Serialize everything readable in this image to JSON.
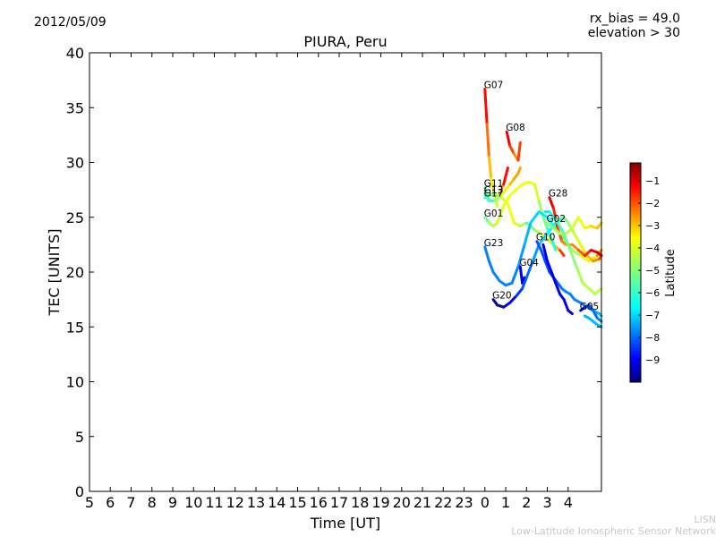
{
  "header": {
    "date": "2012/05/09",
    "rx_bias": "rx_bias = 49.0",
    "elevation": "elevation > 30"
  },
  "credit": {
    "line1": "LISN",
    "line2": "Low-Latitude Ionospheric Sensor Network"
  },
  "colors": {
    "colormap": [
      "#00007f",
      "#0000ff",
      "#007fff",
      "#00ffff",
      "#7fff7f",
      "#ffff00",
      "#ff7f00",
      "#ff0000",
      "#7f0000"
    ],
    "colormap_name": "jet"
  },
  "chart_data": {
    "type": "line",
    "title": "PIURA, Peru",
    "xlabel": "Time [UT]",
    "ylabel": "TEC [UNITS]",
    "ylim": [
      0,
      40
    ],
    "y_ticks": [
      0,
      5,
      10,
      15,
      20,
      25,
      30,
      35,
      40
    ],
    "x_tick_labels": [
      "5",
      "6",
      "7",
      "8",
      "9",
      "10",
      "11",
      "12",
      "13",
      "14",
      "15",
      "16",
      "17",
      "18",
      "19",
      "20",
      "21",
      "22",
      "23",
      "0",
      "1",
      "2",
      "3",
      "4"
    ],
    "x_range_hours_after_5ut": [
      0,
      24.6
    ],
    "colorbar": {
      "label": "Latitude",
      "range": [
        -10,
        -0.2
      ],
      "ticks": [
        -1,
        -2,
        -3,
        -4,
        -5,
        -6,
        -7,
        -8,
        -9
      ]
    },
    "series": [
      {
        "name": "G07",
        "x": [
          19.0,
          19.1,
          19.2,
          19.3,
          19.45,
          19.6
        ],
        "y": [
          36.7,
          33.5,
          30.5,
          28.5,
          27.0,
          26.0
        ],
        "lat": [
          -1,
          -2,
          -3,
          -3.5,
          -4,
          -4.5
        ]
      },
      {
        "name": "G08",
        "x": [
          20.05,
          20.2,
          20.4,
          20.6,
          20.7
        ],
        "y": [
          32.8,
          31.5,
          30.8,
          30.2,
          31.8
        ],
        "lat": [
          -1,
          -1.5,
          -2.5,
          -3,
          -1
        ]
      },
      {
        "name": "G11",
        "x": [
          19.0,
          19.2,
          19.5,
          19.8,
          20.0,
          20.2,
          20.4,
          20.6,
          20.7
        ],
        "y": [
          27.7,
          26.5,
          26.5,
          27.0,
          27.5,
          28.0,
          28.5,
          29.0,
          29.5
        ],
        "lat": [
          -5,
          -5.5,
          -5,
          -4.5,
          -4,
          -3.5,
          -3,
          -3,
          -3
        ]
      },
      {
        "name": "G13",
        "x": [
          19.0,
          19.2,
          19.5,
          19.7,
          19.9,
          20.1
        ],
        "y": [
          27.1,
          26.5,
          26.5,
          27.0,
          28.0,
          29.5
        ],
        "lat": [
          -5.5,
          -6,
          -5.5,
          -4,
          -2,
          -1
        ]
      },
      {
        "name": "G17",
        "x": [
          19.0,
          19.2,
          19.5,
          19.8,
          20.1,
          20.4,
          20.7,
          21.0,
          21.2,
          21.4,
          21.7,
          22.0,
          22.3,
          22.6,
          22.8
        ],
        "y": [
          26.8,
          27.0,
          27.2,
          26.8,
          26.2,
          24.5,
          24.2,
          24.5,
          24.2,
          23.8,
          23.5,
          23.0,
          22.5,
          22.0,
          21.5
        ],
        "lat": [
          -6,
          -5.5,
          -5,
          -4.5,
          -4,
          -4,
          -4.5,
          -5,
          -5.5,
          -5,
          -4.5,
          -4,
          -3.5,
          -3,
          -1
        ]
      },
      {
        "name": "G01",
        "x": [
          19.0,
          19.2,
          19.4,
          19.6,
          19.9,
          20.2,
          20.5,
          20.8,
          21.1,
          21.4,
          21.6,
          21.8,
          22.0,
          22.2,
          22.4
        ],
        "y": [
          25.0,
          24.5,
          24.2,
          24.5,
          26.0,
          27.0,
          27.5,
          28.0,
          28.2,
          28.0,
          26.5,
          25.0,
          24.0,
          23.0,
          22.0
        ],
        "lat": [
          -5.5,
          -5,
          -4.5,
          -4.5,
          -4,
          -4,
          -4,
          -4,
          -4,
          -4,
          -4.5,
          -5,
          -5.5,
          -6,
          -6
        ]
      },
      {
        "name": "G23",
        "x": [
          19.0,
          19.2,
          19.4,
          19.7,
          20.0,
          20.3,
          20.6,
          20.9,
          21.2,
          21.6,
          22.0,
          22.4,
          22.8,
          23.2,
          23.6,
          24.0,
          24.4,
          24.6
        ],
        "y": [
          22.3,
          21.0,
          20.0,
          19.2,
          18.8,
          19.0,
          20.5,
          22.5,
          24.5,
          25.5,
          25.0,
          24.0,
          23.0,
          22.0,
          21.5,
          21.0,
          21.5,
          22.0
        ],
        "lat": [
          -7.5,
          -7.5,
          -7.5,
          -7.5,
          -7.5,
          -7.5,
          -7.5,
          -7,
          -7,
          -6.5,
          -6.5,
          -6,
          -5.5,
          -5,
          -4.5,
          -4,
          -3.5,
          -2
        ]
      },
      {
        "name": "G04",
        "x": [
          20.7,
          20.8,
          20.9
        ],
        "y": [
          20.5,
          19.0,
          19.5
        ],
        "lat": [
          -9,
          -9,
          -9.2
        ]
      },
      {
        "name": "G20",
        "x": [
          19.4,
          19.6,
          19.9,
          20.2,
          20.5,
          20.8,
          21.0,
          21.3,
          21.6,
          22.0,
          22.4,
          22.8,
          23.0,
          23.3,
          23.6,
          23.9,
          24.2,
          24.5,
          24.6
        ],
        "y": [
          17.5,
          17.0,
          16.8,
          17.2,
          17.8,
          18.5,
          19.5,
          21.0,
          22.5,
          23.5,
          24.5,
          25.0,
          24.5,
          23.5,
          22.5,
          21.5,
          21.0,
          21.2,
          21.5
        ],
        "lat": [
          -9.5,
          -9.5,
          -9.5,
          -9,
          -8.5,
          -8,
          -8,
          -7.5,
          -7,
          -6.5,
          -6,
          -5.5,
          -5,
          -4.5,
          -4,
          -3.5,
          -3,
          -2.5,
          -2
        ]
      },
      {
        "name": "G28",
        "x": [
          22.1,
          22.3,
          22.5,
          22.7,
          22.9,
          23.2,
          23.5,
          23.8,
          24.1,
          24.4,
          24.6
        ],
        "y": [
          26.8,
          25.8,
          24.0,
          22.8,
          22.5,
          22.5,
          22.0,
          21.5,
          22.0,
          21.8,
          21.5
        ],
        "lat": [
          -1,
          -1.5,
          -2,
          -2.5,
          -3,
          -3,
          -2.5,
          -2,
          -1.5,
          -1,
          -1
        ]
      },
      {
        "name": "G02",
        "x": [
          22.0,
          22.3,
          22.6,
          22.9,
          23.2,
          23.5,
          23.8,
          24.1,
          24.4,
          24.6
        ],
        "y": [
          24.5,
          24.0,
          23.5,
          23.5,
          24.0,
          25.0,
          24.0,
          24.2,
          24.0,
          24.5
        ],
        "lat": [
          -5,
          -5,
          -4.5,
          -4.5,
          -4.5,
          -4,
          -4,
          -3.5,
          -3.5,
          -3
        ]
      },
      {
        "name": "G10",
        "x": [
          21.5,
          21.7,
          21.9,
          22.1,
          22.3,
          22.5,
          22.7,
          22.9,
          23.1,
          23.3,
          23.6,
          23.9,
          24.2,
          24.5,
          24.6
        ],
        "y": [
          22.8,
          22.0,
          21.0,
          20.0,
          19.5,
          19.0,
          18.5,
          18.2,
          18.0,
          17.5,
          17.2,
          16.8,
          16.5,
          16.2,
          16.0
        ],
        "lat": [
          -8,
          -8,
          -8,
          -8,
          -8,
          -8,
          -7.5,
          -7.5,
          -7.5,
          -7.5,
          -7.5,
          -7.5,
          -7,
          -7,
          -7
        ]
      },
      {
        "name": "G05",
        "x": [
          23.6,
          23.8,
          24.0,
          24.2,
          24.4,
          24.6
        ],
        "y": [
          16.5,
          16.8,
          17.0,
          16.5,
          15.8,
          15.5
        ],
        "lat": [
          -9,
          -8.5,
          -8,
          -8,
          -7.5,
          -7.5
        ]
      },
      {
        "name": "",
        "x": [
          21.8,
          22.0,
          22.2,
          22.4,
          22.6,
          22.8,
          23.0,
          23.2
        ],
        "y": [
          22.5,
          21.0,
          20.0,
          19.0,
          18.0,
          17.5,
          16.5,
          16.2
        ],
        "lat": [
          -9,
          -9,
          -9,
          -9,
          -9,
          -9,
          -9,
          -9
        ]
      },
      {
        "name": "",
        "x": [
          21.9,
          22.1,
          22.3,
          22.5,
          22.8,
          23.1,
          23.4,
          23.7,
          24.0,
          24.3,
          24.6
        ],
        "y": [
          25.5,
          25.5,
          25.0,
          24.5,
          23.5,
          22.0,
          20.5,
          19.0,
          18.5,
          18.0,
          18.5
        ],
        "lat": [
          -6.5,
          -6.5,
          -6,
          -6,
          -5.5,
          -5,
          -5,
          -4.5,
          -4.5,
          -4.5,
          -4.5
        ]
      },
      {
        "name": "",
        "x": [
          23.8,
          24.0,
          24.2,
          24.4,
          24.6
        ],
        "y": [
          16.0,
          15.8,
          15.5,
          15.2,
          15.0
        ],
        "lat": [
          -7,
          -7,
          -7,
          -7,
          -7
        ]
      }
    ]
  }
}
